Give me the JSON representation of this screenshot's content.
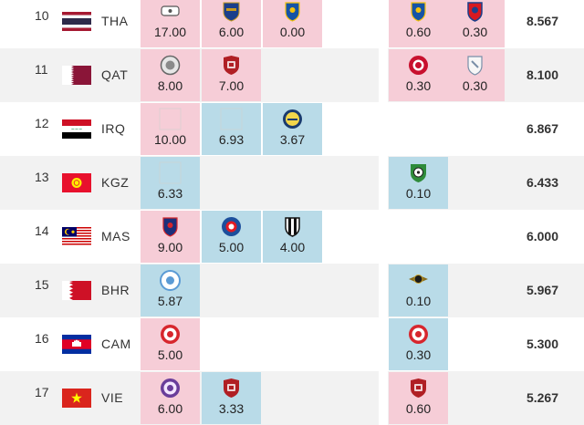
{
  "rows": [
    {
      "rank": "10",
      "code": "THA",
      "flag": "tha",
      "total": "8.567",
      "cells": [
        {
          "col": 0,
          "color": "pink",
          "value": "17.00",
          "logo": "white-badge-icon"
        },
        {
          "col": 1,
          "color": "pink",
          "value": "6.00",
          "logo": "buriram-crest-icon"
        },
        {
          "col": 2,
          "color": "pink",
          "value": "0.00",
          "logo": "blue-shield-crest-icon"
        },
        {
          "col": 4,
          "color": "pink",
          "value": "0.60",
          "logo": "blue-shield-crest-icon"
        },
        {
          "col": 5,
          "color": "pink",
          "value": "0.30",
          "logo": "bangkok-crest-icon"
        }
      ]
    },
    {
      "rank": "11",
      "code": "QAT",
      "flag": "qat",
      "total": "8.100",
      "cells": [
        {
          "col": 0,
          "color": "pink",
          "value": "8.00",
          "logo": "grey-round-crest-icon"
        },
        {
          "col": 1,
          "color": "pink",
          "value": "7.00",
          "logo": "red-shield-crest-icon"
        },
        {
          "col": 4,
          "color": "pink",
          "value": "0.30",
          "logo": "red-round-crest-icon"
        },
        {
          "col": 5,
          "color": "pink",
          "value": "0.30",
          "logo": "white-shield-crest-icon"
        }
      ]
    },
    {
      "rank": "12",
      "code": "IRQ",
      "flag": "irq",
      "total": "6.867",
      "cells": [
        {
          "col": 0,
          "color": "pink",
          "value": "10.00",
          "logo": "blank-crest-icon"
        },
        {
          "col": 1,
          "color": "blue",
          "value": "6.93",
          "logo": "blank-crest-icon"
        },
        {
          "col": 2,
          "color": "blue",
          "value": "3.67",
          "logo": "yellow-round-crest-icon"
        }
      ]
    },
    {
      "rank": "13",
      "code": "KGZ",
      "flag": "kgz",
      "total": "6.433",
      "cells": [
        {
          "col": 0,
          "color": "blue",
          "value": "6.33",
          "logo": "blank-crest-icon"
        },
        {
          "col": 4,
          "color": "blue",
          "value": "0.10",
          "logo": "ball-crest-icon"
        }
      ]
    },
    {
      "rank": "14",
      "code": "MAS",
      "flag": "mas",
      "total": "6.000",
      "cells": [
        {
          "col": 0,
          "color": "pink",
          "value": "9.00",
          "logo": "jdt-crest-icon"
        },
        {
          "col": 1,
          "color": "blue",
          "value": "5.00",
          "logo": "blue-round-crest-icon"
        },
        {
          "col": 2,
          "color": "blue",
          "value": "4.00",
          "logo": "black-white-crest-icon"
        }
      ]
    },
    {
      "rank": "15",
      "code": "BHR",
      "flag": "bhr",
      "total": "5.967",
      "cells": [
        {
          "col": 0,
          "color": "blue",
          "value": "5.87",
          "logo": "light-blue-round-crest-icon"
        },
        {
          "col": 4,
          "color": "blue",
          "value": "0.10",
          "logo": "winged-crest-icon"
        }
      ]
    },
    {
      "rank": "16",
      "code": "CAM",
      "flag": "cam",
      "total": "5.300",
      "cells": [
        {
          "col": 0,
          "color": "pink",
          "value": "5.00",
          "logo": "red-white-round-crest-icon"
        },
        {
          "col": 4,
          "color": "blue",
          "value": "0.30",
          "logo": "red-white-round-crest-icon"
        }
      ]
    },
    {
      "rank": "17",
      "code": "VIE",
      "flag": "vie",
      "total": "5.267",
      "cells": [
        {
          "col": 0,
          "color": "pink",
          "value": "6.00",
          "logo": "purple-round-crest-icon"
        },
        {
          "col": 1,
          "color": "blue",
          "value": "3.33",
          "logo": "red-shield-crest-icon"
        },
        {
          "col": 4,
          "color": "pink",
          "value": "0.60",
          "logo": "red-shield-crest-icon"
        }
      ]
    }
  ],
  "colors": {
    "pink": "#f6cdd7",
    "blue": "#b9dbe8",
    "alt_row": "#f2f2f2"
  }
}
